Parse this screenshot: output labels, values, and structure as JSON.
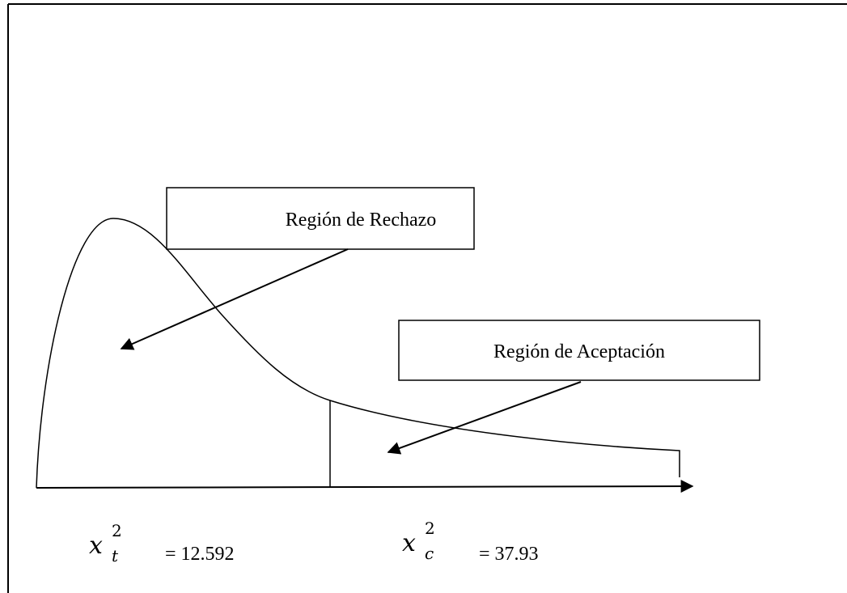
{
  "boxes": [
    {
      "label": "Región de Rechazo"
    },
    {
      "label": "Región de Aceptación"
    }
  ],
  "values": [
    {
      "symbol": "x",
      "sub": "t",
      "sup": "2",
      "text": "= 12.592"
    },
    {
      "symbol": "x",
      "sub": "c",
      "sup": "2",
      "text": "= 37.93"
    }
  ]
}
